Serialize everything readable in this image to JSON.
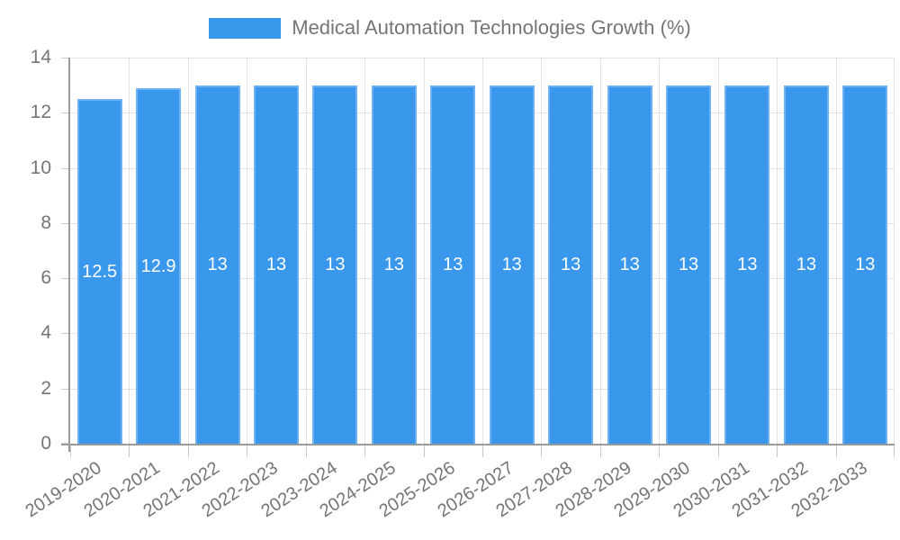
{
  "chart_data": {
    "type": "bar",
    "title": "Medical Automation Technologies Growth (%)",
    "categories": [
      "2019-2020",
      "2020-2021",
      "2021-2022",
      "2022-2023",
      "2023-2024",
      "2024-2025",
      "2025-2026",
      "2026-2027",
      "2027-2028",
      "2028-2029",
      "2029-2030",
      "2030-2031",
      "2031-2032",
      "2032-2033"
    ],
    "values": [
      12.5,
      12.9,
      13,
      13,
      13,
      13,
      13,
      13,
      13,
      13,
      13,
      13,
      13,
      13
    ],
    "value_labels": [
      "12.5",
      "12.9",
      "13",
      "13",
      "13",
      "13",
      "13",
      "13",
      "13",
      "13",
      "13",
      "13",
      "13",
      "13"
    ],
    "xlabel": "",
    "ylabel": "",
    "ylim": [
      0,
      14
    ],
    "yticks": [
      0,
      2,
      4,
      6,
      8,
      10,
      12,
      14
    ],
    "grid": true,
    "legend_position": "top",
    "x_label_rotation_deg": -33,
    "colors": {
      "bar_fill": "#3998ec",
      "bar_border": "#6fb0f2",
      "value_label": "#ffffff",
      "axis_text": "#757575",
      "grid_line": "#e3e3e3",
      "axis_line": "#9a9a9a",
      "tick_mark": "#c9c9c9",
      "background": "#ffffff"
    }
  }
}
